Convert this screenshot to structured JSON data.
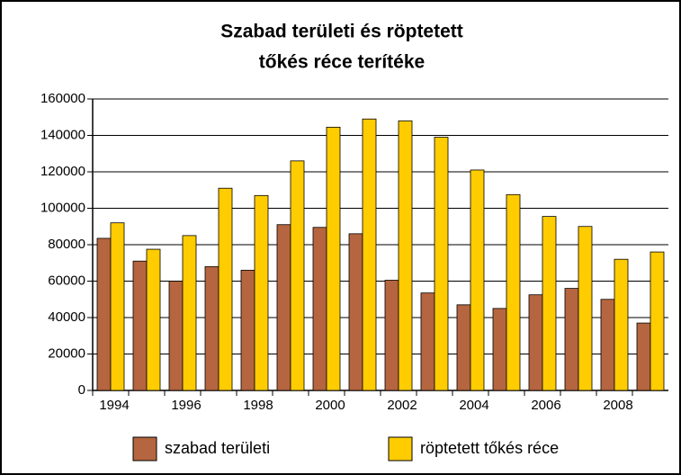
{
  "chart_data": {
    "type": "bar",
    "title": [
      "Szabad területi és röptetett",
      "tőkés réce terítéke"
    ],
    "categories": [
      "1994",
      null,
      "1996",
      null,
      "1998",
      null,
      "2000",
      null,
      "2002",
      null,
      "2004",
      null,
      "2006",
      null,
      "2008",
      null
    ],
    "series": [
      {
        "name": "szabad területi",
        "color": "#b5653f",
        "values": [
          83500,
          71000,
          60000,
          68000,
          66000,
          91000,
          89500,
          86000,
          60500,
          53500,
          47000,
          45000,
          52500,
          56000,
          50000,
          37000
        ]
      },
      {
        "name": "röptetett tőkés réce",
        "color": "#ffcc00",
        "values": [
          92000,
          77500,
          85000,
          111000,
          107000,
          126000,
          144500,
          149000,
          148000,
          139000,
          121000,
          107500,
          95500,
          90000,
          72000,
          76000
        ]
      }
    ],
    "ylim": [
      0,
      160000
    ],
    "yticks": [
      0,
      20000,
      40000,
      60000,
      80000,
      100000,
      120000,
      140000,
      160000
    ],
    "grid": true,
    "legend": "bottom"
  }
}
